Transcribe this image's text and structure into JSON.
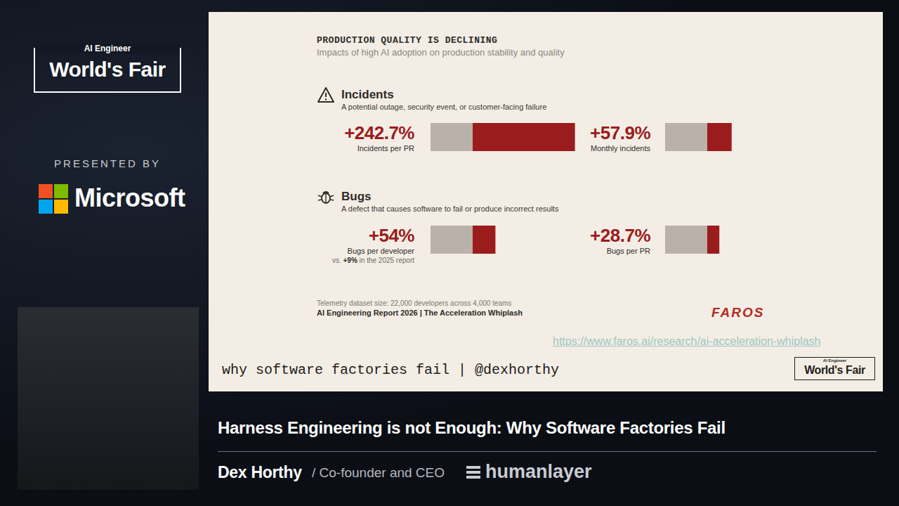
{
  "chart_data": [
    {
      "type": "bar",
      "orientation": "horizontal",
      "stacked": true,
      "data_labels": true,
      "tick_labels": false,
      "title": "Incidents per PR",
      "xlim": [
        0,
        350
      ],
      "series": [
        {
          "color": "#b9b1aa",
          "values": [
            100
          ]
        },
        {
          "color": "#9b1c1c",
          "values": [
            242.7
          ],
          "value_labels": [
            "+242.7%"
          ]
        }
      ]
    },
    {
      "type": "bar",
      "orientation": "horizontal",
      "stacked": true,
      "data_labels": true,
      "tick_labels": false,
      "title": "Monthly incidents",
      "xlim": [
        0,
        350
      ],
      "series": [
        {
          "color": "#b9b1aa",
          "values": [
            100
          ]
        },
        {
          "color": "#9b1c1c",
          "values": [
            57.9
          ],
          "value_labels": [
            "+57.9%"
          ]
        }
      ]
    },
    {
      "type": "bar",
      "orientation": "horizontal",
      "stacked": true,
      "data_labels": true,
      "tick_labels": false,
      "title": "Bugs per developer",
      "annotation": "vs. +9% in the 2025 report",
      "xlim": [
        0,
        350
      ],
      "series": [
        {
          "color": "#b9b1aa",
          "values": [
            100
          ]
        },
        {
          "color": "#9b1c1c",
          "values": [
            54
          ],
          "value_labels": [
            "+54%"
          ]
        }
      ]
    },
    {
      "type": "bar",
      "orientation": "horizontal",
      "stacked": true,
      "data_labels": true,
      "tick_labels": false,
      "title": "Bugs per PR",
      "xlim": [
        0,
        350
      ],
      "series": [
        {
          "color": "#b9b1aa",
          "values": [
            100
          ]
        },
        {
          "color": "#9b1c1c",
          "values": [
            28.7
          ],
          "value_labels": [
            "+28.7%"
          ]
        }
      ]
    }
  ],
  "event_logo": {
    "line1": "AI Engineer",
    "line2": "World's Fair"
  },
  "presented_by": "PRESENTED BY",
  "sponsor": "Microsoft",
  "slide": {
    "title": "PRODUCTION QUALITY IS DECLINING",
    "subtitle": "Impacts of high AI adoption on production stability and quality",
    "sections": [
      {
        "heading": "Incidents",
        "description": "A potential outage, security event, or customer-facing failure"
      },
      {
        "heading": "Bugs",
        "description": "A defect that causes software to fail or produce incorrect results"
      }
    ],
    "source_note": "Telemetry dataset size: 22,000 developers across 4,000 teams",
    "report": "AI Engineering Report 2026 | The Acceleration Whiplash",
    "brand": "FAROS",
    "url": "https://www.faros.ai/research/ai-acceleration-whiplash",
    "footer": "why software factories fail | @dexhorthy",
    "corner_logo": {
      "line1": "AI Engineer",
      "line2": "World's Fair"
    }
  },
  "talk": {
    "title": "Harness Engineering is not Enough: Why Software Factories Fail",
    "speaker": "Dex Horthy",
    "role": "/ Co-founder and CEO",
    "company": "humanlayer"
  }
}
